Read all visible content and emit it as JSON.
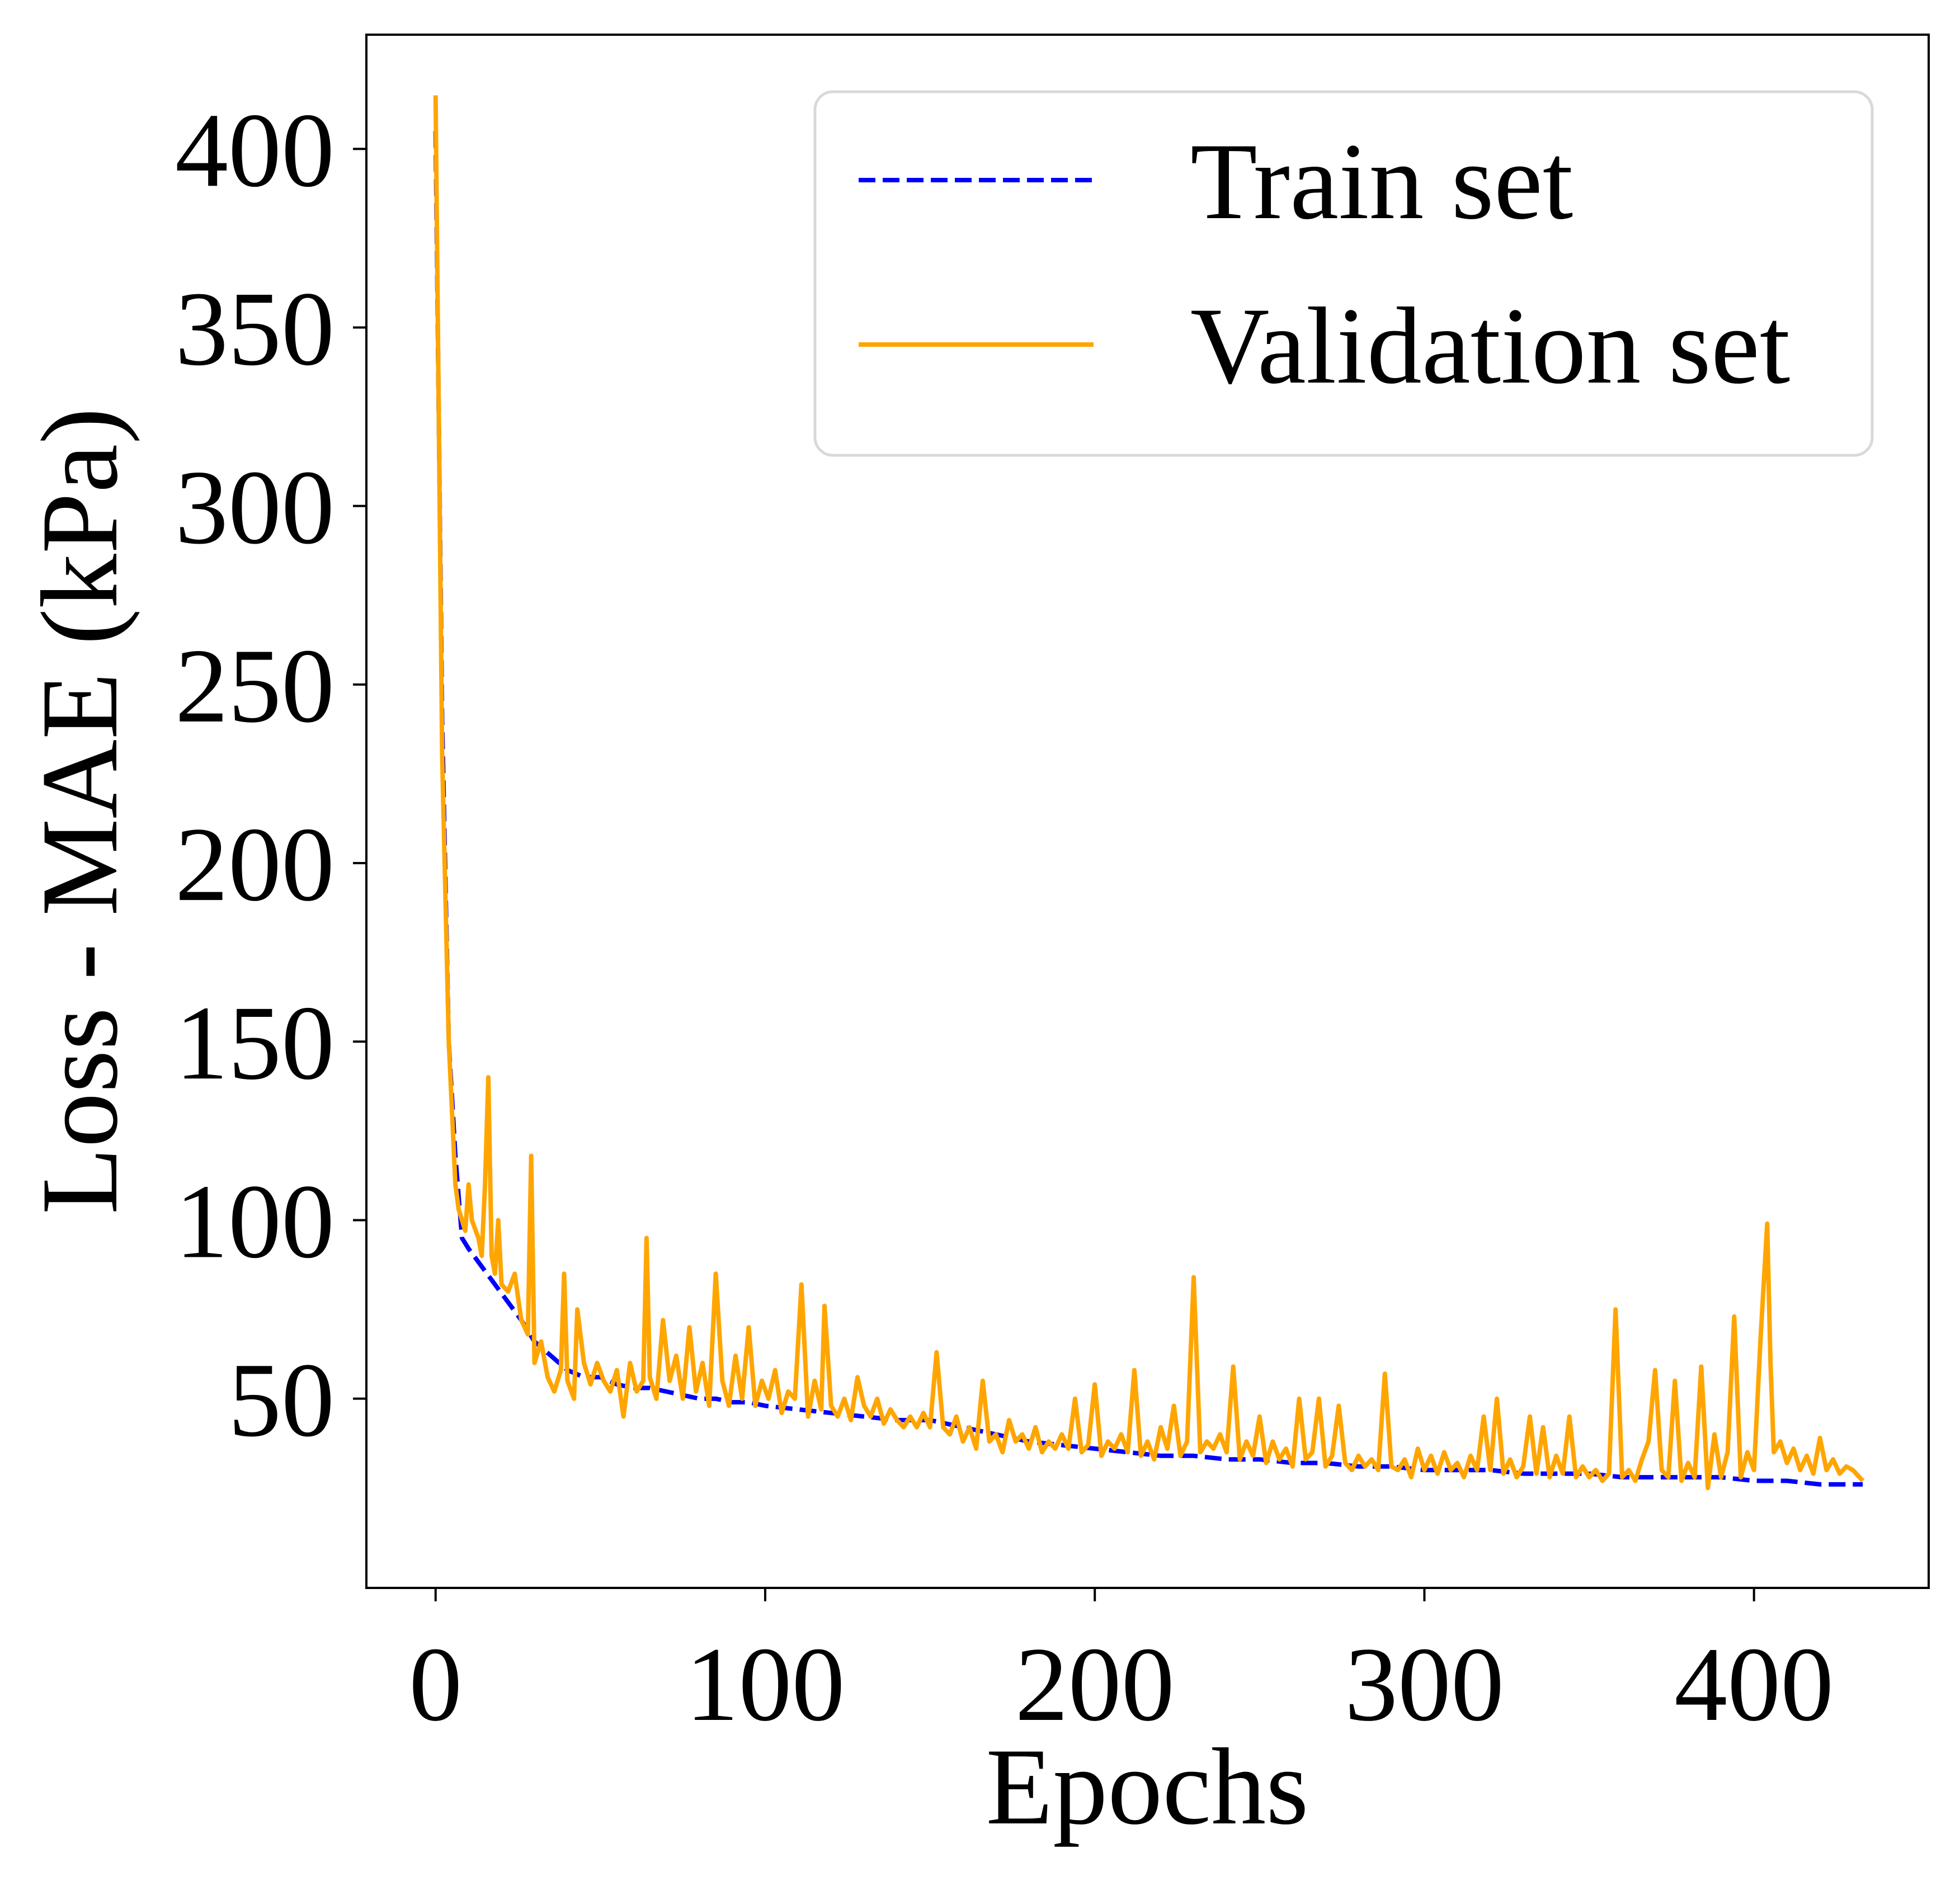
{
  "chart_data": {
    "type": "line",
    "xlabel": "Epochs",
    "ylabel": "Loss - MAE (kPa)",
    "xlim": [
      -21,
      453
    ],
    "ylim": [
      -3,
      432
    ],
    "xticks": [
      0,
      100,
      200,
      300,
      400
    ],
    "yticks": [
      50,
      100,
      150,
      200,
      250,
      300,
      350,
      400
    ],
    "grid": false,
    "legend_position": "top-right",
    "series": [
      {
        "name": "Train set",
        "color": "#0000ff",
        "style": "dashed",
        "points": [
          [
            0,
            405
          ],
          [
            2,
            240
          ],
          [
            4,
            150
          ],
          [
            6,
            118
          ],
          [
            8,
            95
          ],
          [
            10,
            92
          ],
          [
            14,
            87
          ],
          [
            18,
            82
          ],
          [
            22,
            77
          ],
          [
            26,
            72
          ],
          [
            30,
            66
          ],
          [
            35,
            62
          ],
          [
            40,
            58
          ],
          [
            45,
            56
          ],
          [
            50,
            56
          ],
          [
            55,
            54
          ],
          [
            60,
            53
          ],
          [
            65,
            53
          ],
          [
            70,
            52
          ],
          [
            75,
            51
          ],
          [
            80,
            50
          ],
          [
            85,
            50
          ],
          [
            90,
            49
          ],
          [
            95,
            49
          ],
          [
            100,
            48
          ],
          [
            110,
            47
          ],
          [
            120,
            46
          ],
          [
            130,
            45
          ],
          [
            140,
            44
          ],
          [
            150,
            44
          ],
          [
            160,
            42
          ],
          [
            170,
            40
          ],
          [
            180,
            38
          ],
          [
            190,
            37
          ],
          [
            200,
            36
          ],
          [
            210,
            35
          ],
          [
            220,
            34
          ],
          [
            230,
            34
          ],
          [
            240,
            33
          ],
          [
            250,
            33
          ],
          [
            260,
            32
          ],
          [
            270,
            32
          ],
          [
            280,
            31
          ],
          [
            290,
            31
          ],
          [
            300,
            30
          ],
          [
            310,
            30
          ],
          [
            320,
            30
          ],
          [
            330,
            29
          ],
          [
            340,
            29
          ],
          [
            350,
            29
          ],
          [
            360,
            28
          ],
          [
            370,
            28
          ],
          [
            380,
            28
          ],
          [
            390,
            28
          ],
          [
            400,
            27
          ],
          [
            410,
            27
          ],
          [
            420,
            26
          ],
          [
            430,
            26
          ],
          [
            433,
            26
          ]
        ]
      },
      {
        "name": "Validation set",
        "color": "#ffa500",
        "style": "solid",
        "points": [
          [
            0,
            415
          ],
          [
            2,
            230
          ],
          [
            4,
            150
          ],
          [
            6,
            110
          ],
          [
            7,
            103
          ],
          [
            9,
            97
          ],
          [
            10,
            110
          ],
          [
            11,
            100
          ],
          [
            13,
            95
          ],
          [
            14,
            90
          ],
          [
            15,
            110
          ],
          [
            16,
            140
          ],
          [
            17,
            90
          ],
          [
            18,
            85
          ],
          [
            19,
            100
          ],
          [
            20,
            82
          ],
          [
            22,
            80
          ],
          [
            24,
            85
          ],
          [
            26,
            72
          ],
          [
            28,
            68
          ],
          [
            29,
            118
          ],
          [
            30,
            60
          ],
          [
            32,
            66
          ],
          [
            34,
            56
          ],
          [
            36,
            52
          ],
          [
            38,
            58
          ],
          [
            39,
            85
          ],
          [
            40,
            55
          ],
          [
            42,
            50
          ],
          [
            43,
            75
          ],
          [
            45,
            60
          ],
          [
            47,
            54
          ],
          [
            49,
            60
          ],
          [
            51,
            55
          ],
          [
            53,
            52
          ],
          [
            55,
            58
          ],
          [
            57,
            45
          ],
          [
            59,
            60
          ],
          [
            61,
            52
          ],
          [
            63,
            55
          ],
          [
            64,
            95
          ],
          [
            65,
            56
          ],
          [
            67,
            50
          ],
          [
            69,
            72
          ],
          [
            71,
            55
          ],
          [
            73,
            62
          ],
          [
            75,
            50
          ],
          [
            77,
            70
          ],
          [
            79,
            52
          ],
          [
            81,
            60
          ],
          [
            83,
            48
          ],
          [
            85,
            85
          ],
          [
            87,
            55
          ],
          [
            89,
            48
          ],
          [
            91,
            62
          ],
          [
            93,
            50
          ],
          [
            95,
            70
          ],
          [
            97,
            48
          ],
          [
            99,
            55
          ],
          [
            101,
            50
          ],
          [
            103,
            58
          ],
          [
            105,
            46
          ],
          [
            107,
            52
          ],
          [
            109,
            50
          ],
          [
            111,
            82
          ],
          [
            113,
            45
          ],
          [
            115,
            55
          ],
          [
            117,
            47
          ],
          [
            118,
            76
          ],
          [
            120,
            48
          ],
          [
            122,
            45
          ],
          [
            124,
            50
          ],
          [
            126,
            44
          ],
          [
            128,
            56
          ],
          [
            130,
            48
          ],
          [
            132,
            45
          ],
          [
            134,
            50
          ],
          [
            136,
            43
          ],
          [
            138,
            47
          ],
          [
            140,
            44
          ],
          [
            142,
            42
          ],
          [
            144,
            45
          ],
          [
            146,
            42
          ],
          [
            148,
            46
          ],
          [
            150,
            42
          ],
          [
            152,
            63
          ],
          [
            154,
            42
          ],
          [
            156,
            40
          ],
          [
            158,
            45
          ],
          [
            160,
            38
          ],
          [
            162,
            42
          ],
          [
            164,
            36
          ],
          [
            166,
            55
          ],
          [
            168,
            38
          ],
          [
            170,
            40
          ],
          [
            172,
            35
          ],
          [
            174,
            44
          ],
          [
            176,
            38
          ],
          [
            178,
            40
          ],
          [
            180,
            36
          ],
          [
            182,
            42
          ],
          [
            184,
            35
          ],
          [
            186,
            38
          ],
          [
            188,
            36
          ],
          [
            190,
            40
          ],
          [
            192,
            36
          ],
          [
            194,
            50
          ],
          [
            196,
            35
          ],
          [
            198,
            37
          ],
          [
            200,
            54
          ],
          [
            202,
            34
          ],
          [
            204,
            38
          ],
          [
            206,
            36
          ],
          [
            208,
            40
          ],
          [
            210,
            35
          ],
          [
            212,
            58
          ],
          [
            214,
            34
          ],
          [
            216,
            38
          ],
          [
            218,
            33
          ],
          [
            220,
            42
          ],
          [
            222,
            36
          ],
          [
            224,
            48
          ],
          [
            226,
            34
          ],
          [
            228,
            38
          ],
          [
            230,
            84
          ],
          [
            232,
            35
          ],
          [
            234,
            38
          ],
          [
            236,
            36
          ],
          [
            238,
            40
          ],
          [
            240,
            35
          ],
          [
            242,
            59
          ],
          [
            244,
            33
          ],
          [
            246,
            38
          ],
          [
            248,
            34
          ],
          [
            250,
            45
          ],
          [
            252,
            32
          ],
          [
            254,
            38
          ],
          [
            256,
            33
          ],
          [
            258,
            36
          ],
          [
            260,
            31
          ],
          [
            262,
            50
          ],
          [
            264,
            33
          ],
          [
            266,
            35
          ],
          [
            268,
            50
          ],
          [
            270,
            31
          ],
          [
            272,
            34
          ],
          [
            274,
            48
          ],
          [
            276,
            32
          ],
          [
            278,
            30
          ],
          [
            280,
            34
          ],
          [
            282,
            31
          ],
          [
            284,
            33
          ],
          [
            286,
            30
          ],
          [
            288,
            57
          ],
          [
            290,
            31
          ],
          [
            292,
            30
          ],
          [
            294,
            33
          ],
          [
            296,
            28
          ],
          [
            298,
            36
          ],
          [
            300,
            30
          ],
          [
            302,
            34
          ],
          [
            304,
            29
          ],
          [
            306,
            35
          ],
          [
            308,
            30
          ],
          [
            310,
            32
          ],
          [
            312,
            28
          ],
          [
            314,
            34
          ],
          [
            316,
            30
          ],
          [
            318,
            45
          ],
          [
            320,
            30
          ],
          [
            322,
            50
          ],
          [
            324,
            29
          ],
          [
            326,
            33
          ],
          [
            328,
            28
          ],
          [
            330,
            31
          ],
          [
            332,
            45
          ],
          [
            334,
            29
          ],
          [
            336,
            42
          ],
          [
            338,
            28
          ],
          [
            340,
            34
          ],
          [
            342,
            29
          ],
          [
            344,
            45
          ],
          [
            346,
            28
          ],
          [
            348,
            31
          ],
          [
            350,
            28
          ],
          [
            352,
            30
          ],
          [
            354,
            27
          ],
          [
            356,
            29
          ],
          [
            358,
            75
          ],
          [
            360,
            28
          ],
          [
            362,
            30
          ],
          [
            364,
            27
          ],
          [
            366,
            33
          ],
          [
            368,
            38
          ],
          [
            370,
            58
          ],
          [
            372,
            30
          ],
          [
            374,
            28
          ],
          [
            376,
            55
          ],
          [
            378,
            27
          ],
          [
            380,
            32
          ],
          [
            382,
            28
          ],
          [
            384,
            59
          ],
          [
            386,
            25
          ],
          [
            388,
            40
          ],
          [
            390,
            28
          ],
          [
            392,
            35
          ],
          [
            394,
            73
          ],
          [
            396,
            28
          ],
          [
            398,
            35
          ],
          [
            400,
            30
          ],
          [
            402,
            67
          ],
          [
            404,
            99
          ],
          [
            405,
            60
          ],
          [
            406,
            35
          ],
          [
            408,
            38
          ],
          [
            410,
            32
          ],
          [
            412,
            36
          ],
          [
            414,
            30
          ],
          [
            416,
            34
          ],
          [
            418,
            29
          ],
          [
            420,
            39
          ],
          [
            422,
            30
          ],
          [
            424,
            33
          ],
          [
            426,
            29
          ],
          [
            428,
            31
          ],
          [
            430,
            30
          ],
          [
            433,
            27
          ]
        ]
      }
    ]
  }
}
